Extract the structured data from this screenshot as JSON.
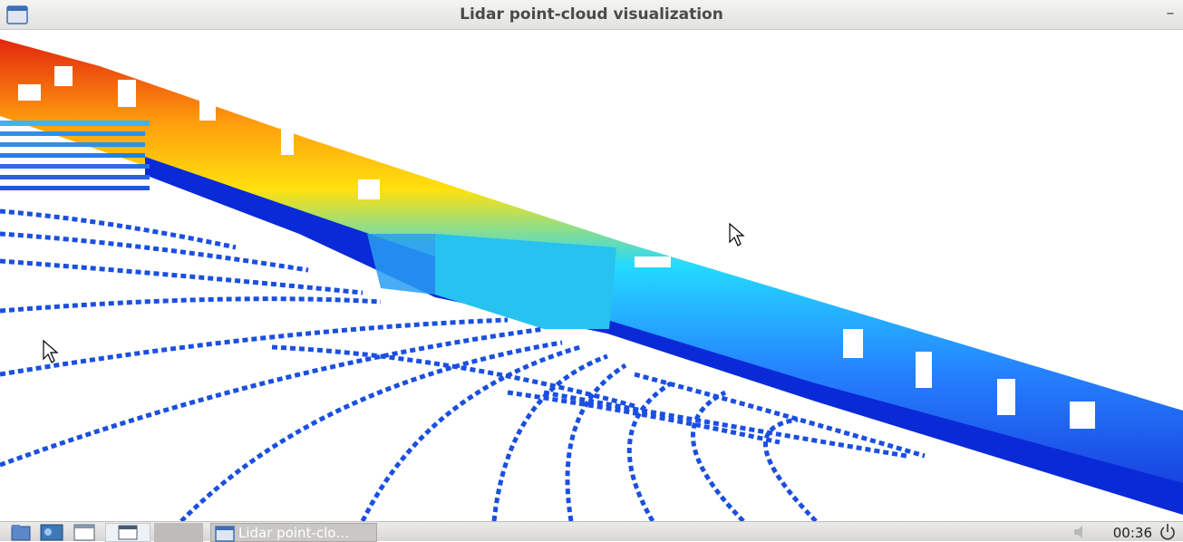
{
  "window": {
    "title": "Lidar point-cloud visualization",
    "minimize_glyph": "–",
    "icons": [
      "window-menu-icon",
      "minimize-icon"
    ]
  },
  "taskbar": {
    "launchers": [
      "file-manager-icon",
      "desktop-icon",
      "window-icon",
      "show-desktop-icon",
      "blank-launcher-icon"
    ],
    "task_label": "Lidar point-clo…",
    "clock": "00:36",
    "icons": [
      "volume-icon",
      "power-icon"
    ]
  },
  "colors": {
    "ground": "#1a4fe0",
    "low": "#0a2ad8",
    "mid": "#19d8ff",
    "high": "#ffcc00",
    "top": "#e01a00"
  }
}
